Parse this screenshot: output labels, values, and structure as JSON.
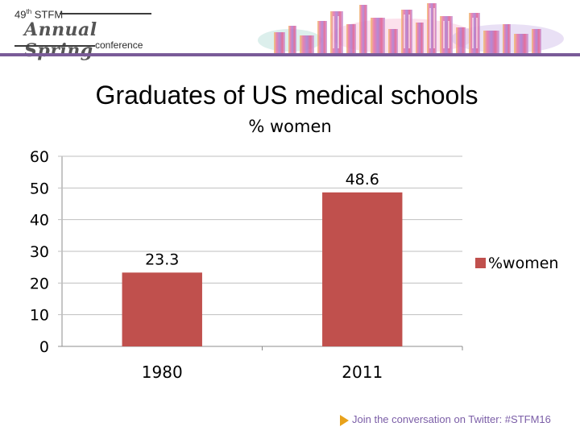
{
  "header": {
    "edition": "49",
    "edition_suffix": "th",
    "org": "STFM",
    "event": "Annual Spring",
    "sub": "conference",
    "accent_color": "#7a5b98"
  },
  "slide": {
    "title": "Graduates of US medical schools"
  },
  "chart_data": {
    "type": "bar",
    "title": "% women",
    "categories": [
      "1980",
      "2011"
    ],
    "series": [
      {
        "name": "%women",
        "values": [
          23.3,
          48.6
        ],
        "color": "#c0504d"
      }
    ],
    "data_labels": [
      "23.3",
      "48.6"
    ],
    "ylim": [
      0,
      60
    ],
    "yticks": [
      0,
      10,
      20,
      30,
      40,
      50,
      60
    ],
    "xlabel": "",
    "ylabel": "",
    "grid": true,
    "legend": "right"
  },
  "footer": {
    "text": "Join the conversation on Twitter: #STFM16",
    "arrow_color": "#e8a21b"
  }
}
